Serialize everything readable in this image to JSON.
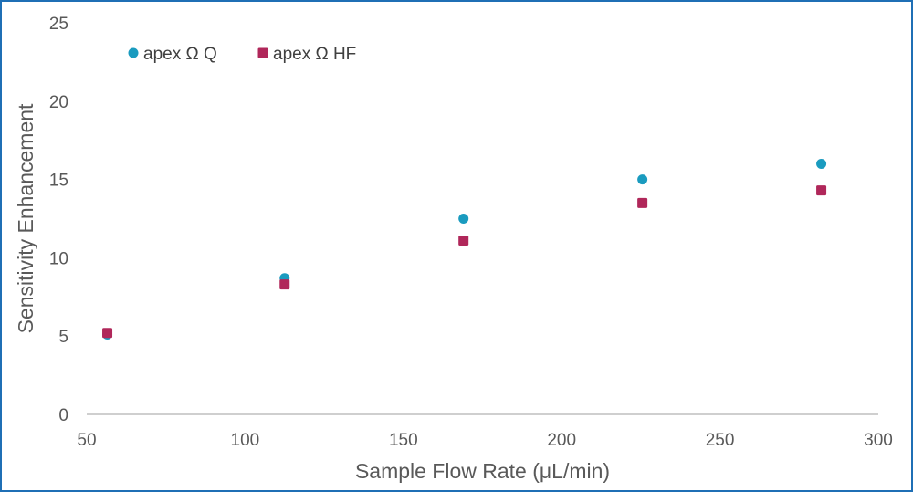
{
  "chart_data": {
    "type": "scatter",
    "title": "",
    "xlabel": "Sample Flow Rate (μL/min)",
    "ylabel": "Sensitivity Enhancement",
    "xlim": [
      50,
      300
    ],
    "ylim": [
      0,
      25
    ],
    "x_ticks": [
      50,
      100,
      150,
      200,
      250,
      300
    ],
    "y_ticks": [
      0,
      5,
      10,
      15,
      20,
      25
    ],
    "grid": false,
    "legend_position": "top-left",
    "series": [
      {
        "name": "apex Ω Q",
        "marker": "circle",
        "color": "#1a9bbf",
        "x": [
          56.5,
          112.5,
          169,
          225.5,
          282
        ],
        "y": [
          5.1,
          8.7,
          12.5,
          15.0,
          16.0
        ]
      },
      {
        "name": "apex Ω HF",
        "marker": "square",
        "color": "#b0275a",
        "x": [
          56.5,
          112.5,
          169,
          225.5,
          282
        ],
        "y": [
          5.2,
          8.3,
          11.1,
          13.5,
          14.3
        ]
      }
    ]
  }
}
